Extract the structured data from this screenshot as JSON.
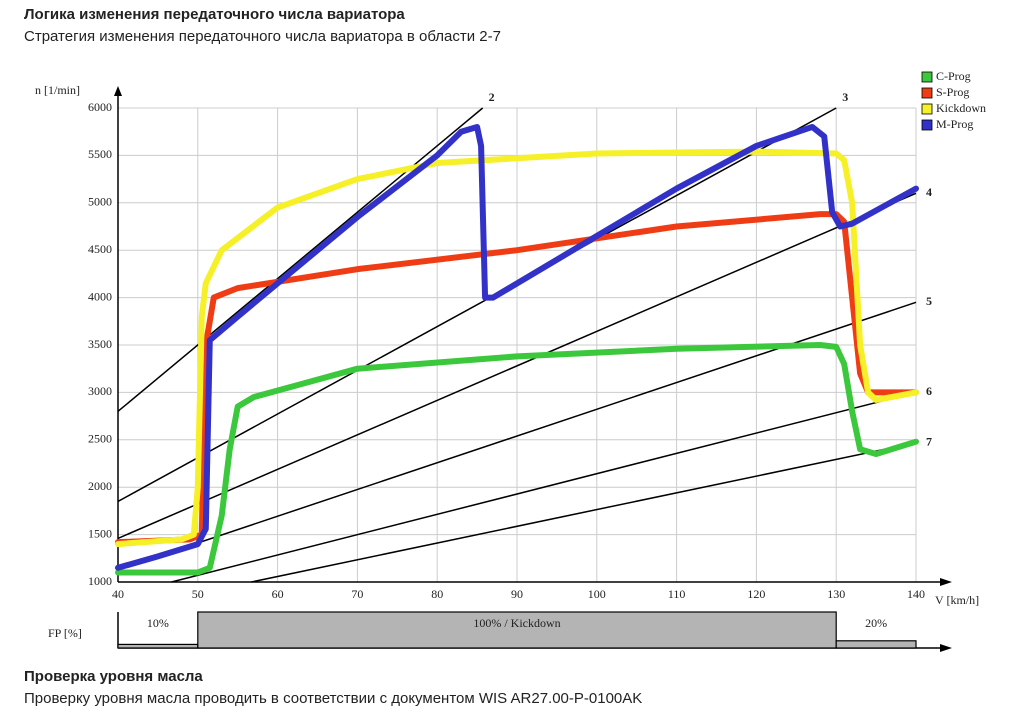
{
  "header": {
    "title": "Логика изменения передаточного числа вариатора",
    "subtitle": "Стратегия изменения передаточного числа вариатора в области 2-7"
  },
  "chart_data": {
    "type": "line",
    "ylabel": "n [1/min]",
    "xlabel": "V [km/h]",
    "xlim": [
      40,
      140
    ],
    "xticks": [
      40,
      50,
      60,
      70,
      80,
      90,
      100,
      110,
      120,
      130,
      140
    ],
    "ylim": [
      1000,
      6000
    ],
    "yticks": [
      1000,
      1500,
      2000,
      2500,
      3000,
      3500,
      4000,
      4500,
      5000,
      5500,
      6000
    ],
    "grid": true,
    "series": [
      {
        "name": "C-Prog",
        "color": "#3cc83c",
        "x": [
          40,
          50,
          51.5,
          53,
          54,
          55,
          57,
          70,
          90,
          110,
          128,
          130,
          131,
          132,
          133,
          135,
          140
        ],
        "values": [
          1100,
          1100,
          1150,
          1700,
          2400,
          2850,
          2950,
          3250,
          3380,
          3460,
          3500,
          3480,
          3300,
          2800,
          2400,
          2350,
          2480
        ]
      },
      {
        "name": "S-Prog",
        "color": "#f03c14",
        "x": [
          40,
          49,
          50.5,
          51,
          52,
          55,
          70,
          90,
          110,
          128,
          130,
          131,
          132,
          133,
          134,
          140
        ],
        "values": [
          1420,
          1450,
          1500,
          3500,
          4000,
          4100,
          4300,
          4500,
          4750,
          4880,
          4880,
          4800,
          4000,
          3200,
          3000,
          3000
        ]
      },
      {
        "name": "Kickdown",
        "color": "#f5f028",
        "x": [
          40,
          48,
          49.5,
          50,
          50.5,
          51,
          53,
          60,
          70,
          80,
          100,
          120,
          130,
          131,
          132,
          133,
          134,
          135,
          140
        ],
        "values": [
          1400,
          1450,
          1500,
          2000,
          3800,
          4150,
          4500,
          4950,
          5250,
          5420,
          5520,
          5540,
          5520,
          5450,
          5000,
          3500,
          3000,
          2920,
          3000
        ]
      },
      {
        "name": "M-Prog",
        "color": "#3232c8",
        "x": [
          40,
          45,
          50,
          51,
          51.5,
          55,
          60,
          70,
          80,
          83,
          85,
          85.5,
          86,
          87,
          100,
          110,
          120,
          127,
          128.5,
          129.5,
          130.5,
          132,
          140
        ],
        "values": [
          1150,
          1270,
          1400,
          1560,
          3550,
          3800,
          4150,
          4850,
          5500,
          5750,
          5800,
          5600,
          4000,
          4000,
          4650,
          5150,
          5600,
          5800,
          5700,
          4900,
          4750,
          4780,
          5150
        ]
      }
    ],
    "ratio_lines": [
      {
        "label": "2",
        "x": [
          40,
          85.7
        ],
        "values": [
          2800,
          6000
        ]
      },
      {
        "label": "3",
        "x": [
          40,
          130
        ],
        "values": [
          1850,
          6000
        ]
      },
      {
        "label": "4",
        "x": [
          40,
          140
        ],
        "values": [
          1460,
          5100
        ]
      },
      {
        "label": "5",
        "x": [
          40,
          140
        ],
        "values": [
          1130,
          3950
        ]
      },
      {
        "label": "6",
        "x": [
          46.7,
          140
        ],
        "values": [
          1000,
          3000
        ]
      },
      {
        "label": "7",
        "x": [
          56.7,
          140
        ],
        "values": [
          1000,
          2470
        ]
      }
    ],
    "fp_strip": {
      "label": "FP [%]",
      "segments": [
        {
          "label": "10%",
          "x": [
            40,
            50
          ],
          "value": 10
        },
        {
          "label": "100% / Kickdown",
          "x": [
            50,
            130
          ],
          "value": 100
        },
        {
          "label": "20%",
          "x": [
            130,
            140
          ],
          "value": 20
        }
      ]
    }
  },
  "section": {
    "title": "Проверка уровня масла",
    "text": "Проверку уровня масла проводить в соответствии с документом WIS AR27.00-P-0100AK"
  }
}
